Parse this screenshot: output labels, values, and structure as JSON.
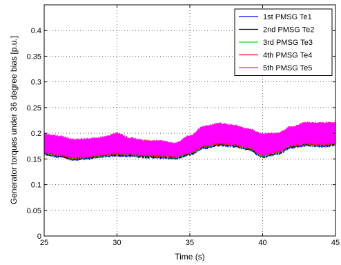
{
  "chart_data": {
    "type": "line",
    "title": "",
    "xlabel": "Time (s)",
    "ylabel": "Generator torques under 36 degree bias [p.u.]",
    "xlim": [
      25,
      45
    ],
    "ylim": [
      0,
      0.45
    ],
    "xticks": [
      25,
      30,
      35,
      40,
      45
    ],
    "yticks": [
      0,
      0.05,
      0.1,
      0.15,
      0.2,
      0.25,
      0.3,
      0.35,
      0.4
    ],
    "grid": true,
    "legend_position": "top-right",
    "envelope_upper": [
      [
        25,
        0.196
      ],
      [
        26,
        0.193
      ],
      [
        27,
        0.186
      ],
      [
        28,
        0.187
      ],
      [
        29,
        0.19
      ],
      [
        30,
        0.198
      ],
      [
        31,
        0.188
      ],
      [
        32,
        0.184
      ],
      [
        33,
        0.183
      ],
      [
        34,
        0.179
      ],
      [
        35,
        0.193
      ],
      [
        36,
        0.212
      ],
      [
        37,
        0.217
      ],
      [
        38,
        0.214
      ],
      [
        39,
        0.207
      ],
      [
        40,
        0.197
      ],
      [
        41,
        0.198
      ],
      [
        42,
        0.211
      ],
      [
        43,
        0.219
      ],
      [
        44,
        0.218
      ],
      [
        45,
        0.219
      ]
    ],
    "envelope_lower": [
      [
        25,
        0.16
      ],
      [
        26,
        0.156
      ],
      [
        27,
        0.15
      ],
      [
        28,
        0.152
      ],
      [
        29,
        0.156
      ],
      [
        30,
        0.158
      ],
      [
        31,
        0.157
      ],
      [
        32,
        0.155
      ],
      [
        33,
        0.154
      ],
      [
        34,
        0.152
      ],
      [
        35,
        0.16
      ],
      [
        36,
        0.173
      ],
      [
        37,
        0.178
      ],
      [
        38,
        0.176
      ],
      [
        39,
        0.17
      ],
      [
        40,
        0.155
      ],
      [
        41,
        0.161
      ],
      [
        42,
        0.174
      ],
      [
        43,
        0.178
      ],
      [
        44,
        0.176
      ],
      [
        45,
        0.178
      ]
    ],
    "series": [
      {
        "name": "1st PMSG Te1",
        "color": "#0000ff"
      },
      {
        "name": "2nd PMSG Te2",
        "color": "#000000"
      },
      {
        "name": "3rd PMSG Te3",
        "color": "#00dd00"
      },
      {
        "name": "4th PMSG Te4",
        "color": "#ff0000"
      },
      {
        "name": "5th PMSG Te5",
        "color": "#ff00ff"
      }
    ]
  }
}
